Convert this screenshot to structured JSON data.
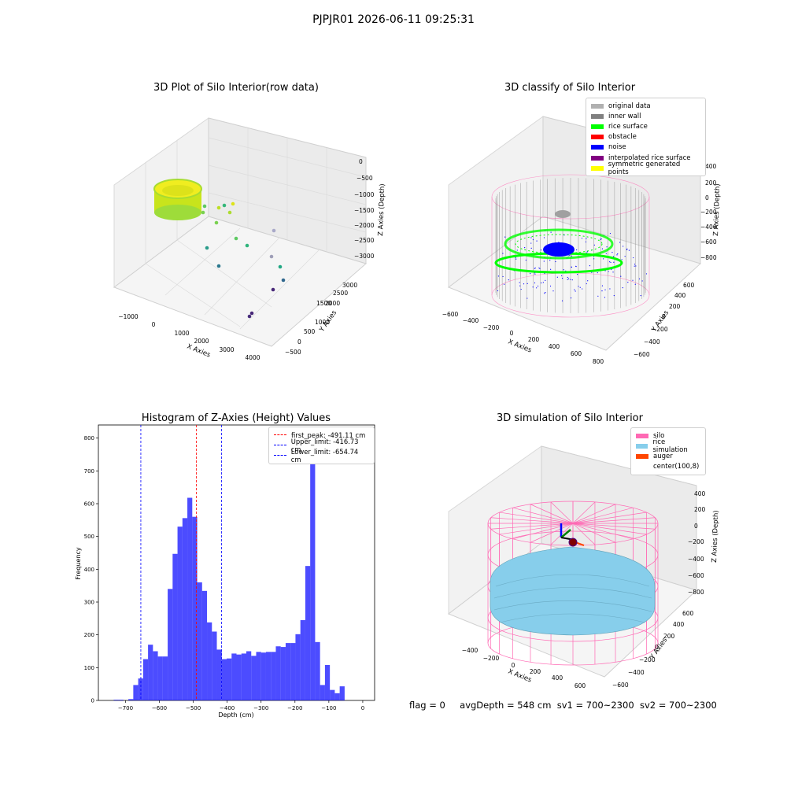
{
  "suptitle": "PJPJR01 2026-06-11 09:25:31",
  "footer": {
    "flag": "flag = 0",
    "avgdepth": "avgDepth = 548 cm",
    "sv1": "sv1 = 700~2300",
    "sv2": "sv2 = 700~2300"
  },
  "colors": {
    "silo_pink": "#ff69b4",
    "rice_sim": "#87ceeb",
    "auger": "#ff4500",
    "hist_blue": "#0000ff",
    "rice_green": "#00ff00",
    "noise_blue": "#0000ff",
    "inner_wall": "#808080",
    "original": "#b0b0b0",
    "obstacle": "#ff0000",
    "interp": "#800080",
    "symmetric": "#ffff00"
  },
  "chart_data": [
    {
      "type": "scatter",
      "title": "3D Plot of Silo Interior(row data)",
      "xlabel": "X Axies",
      "ylabel": "Y Axies",
      "zlabel": "Z Axies (Depth)",
      "x_ticks": [
        "−1000",
        "0",
        "1000",
        "2000",
        "3000",
        "4000"
      ],
      "y_ticks": [
        "−500",
        "0",
        "500",
        "1000",
        "1500",
        "2000",
        "2500",
        "3000"
      ],
      "z_ticks": [
        "0",
        "−500",
        "−1000",
        "−1500",
        "−2000",
        "−2500",
        "−3000"
      ]
    },
    {
      "type": "scatter",
      "title": "3D classify of Silo Interior",
      "xlabel": "X Axies",
      "ylabel": "Y Axies",
      "zlabel": "Z Axies (Depth)",
      "x_ticks": [
        "−600",
        "−400",
        "−200",
        "0",
        "200",
        "400",
        "600",
        "800"
      ],
      "y_ticks": [
        "−600",
        "−400",
        "−200",
        "0",
        "200",
        "400",
        "600"
      ],
      "z_ticks": [
        "400",
        "200",
        "0",
        "−200",
        "−400",
        "−600",
        "−800"
      ],
      "legend": [
        {
          "label": "original data",
          "color": "#b0b0b0"
        },
        {
          "label": "inner wall",
          "color": "#808080"
        },
        {
          "label": "rice surface",
          "color": "#00ff00"
        },
        {
          "label": "obstacle",
          "color": "#ff0000"
        },
        {
          "label": "noise",
          "color": "#0000ff"
        },
        {
          "label": "interpolated rice surface",
          "color": "#800080"
        },
        {
          "label": "symmetric generated points",
          "color": "#ffff00"
        }
      ]
    },
    {
      "type": "bar",
      "title": "Histogram of Z-Axies (Height) Values",
      "xlabel": "Depth (cm)",
      "ylabel": "Frequency",
      "xlim": [
        -780,
        35
      ],
      "ylim": [
        0,
        840
      ],
      "x_ticks": [
        -700,
        -600,
        -500,
        -400,
        -300,
        -200,
        -100,
        0
      ],
      "y_ticks": [
        0,
        100,
        200,
        300,
        400,
        500,
        600,
        700,
        800
      ],
      "bin_width": 14.5,
      "bins_start": -735,
      "values": [
        2,
        2,
        0,
        4,
        47,
        67,
        126,
        170,
        150,
        134,
        134,
        340,
        447,
        530,
        556,
        618,
        560,
        360,
        334,
        238,
        210,
        155,
        126,
        128,
        143,
        140,
        143,
        150,
        136,
        148,
        146,
        148,
        148,
        165,
        163,
        175,
        175,
        202,
        245,
        410,
        745,
        178,
        47,
        108,
        32,
        22,
        43
      ],
      "vlines": [
        {
          "label": "first_peak: -491.11 cm",
          "x": -491.11,
          "color": "#ff0000"
        },
        {
          "label": "Upper_limit: -416.73 cm",
          "x": -416.73,
          "color": "#0000ff"
        },
        {
          "label": "Lower_limit: -654.74 cm",
          "x": -654.74,
          "color": "#0000ff"
        }
      ],
      "x_tick_labels": [
        "−700",
        "−600",
        "−500",
        "−400",
        "−300",
        "−200",
        "−100",
        "0"
      ],
      "y_tick_labels": [
        "0",
        "100",
        "200",
        "300",
        "400",
        "500",
        "600",
        "700",
        "800"
      ]
    },
    {
      "type": "scatter",
      "title": "3D simulation of Silo Interior",
      "xlabel": "X Axies",
      "ylabel": "Y Axies",
      "zlabel": "Z Axies (Depth)",
      "x_ticks": [
        "−400",
        "−200",
        "0",
        "200",
        "400",
        "600"
      ],
      "y_ticks": [
        "−600",
        "−400",
        "−200",
        "0",
        "200",
        "400",
        "600"
      ],
      "z_ticks": [
        "400",
        "200",
        "0",
        "−200",
        "−400",
        "−600",
        "−800"
      ],
      "legend": [
        {
          "label": "silo",
          "color": "#ff69b4"
        },
        {
          "label": "rice simulation",
          "color": "#87ceeb"
        },
        {
          "label": "auger",
          "color": "#ff4500"
        },
        {
          "label": "center(100,8)",
          "color": ""
        }
      ]
    }
  ]
}
